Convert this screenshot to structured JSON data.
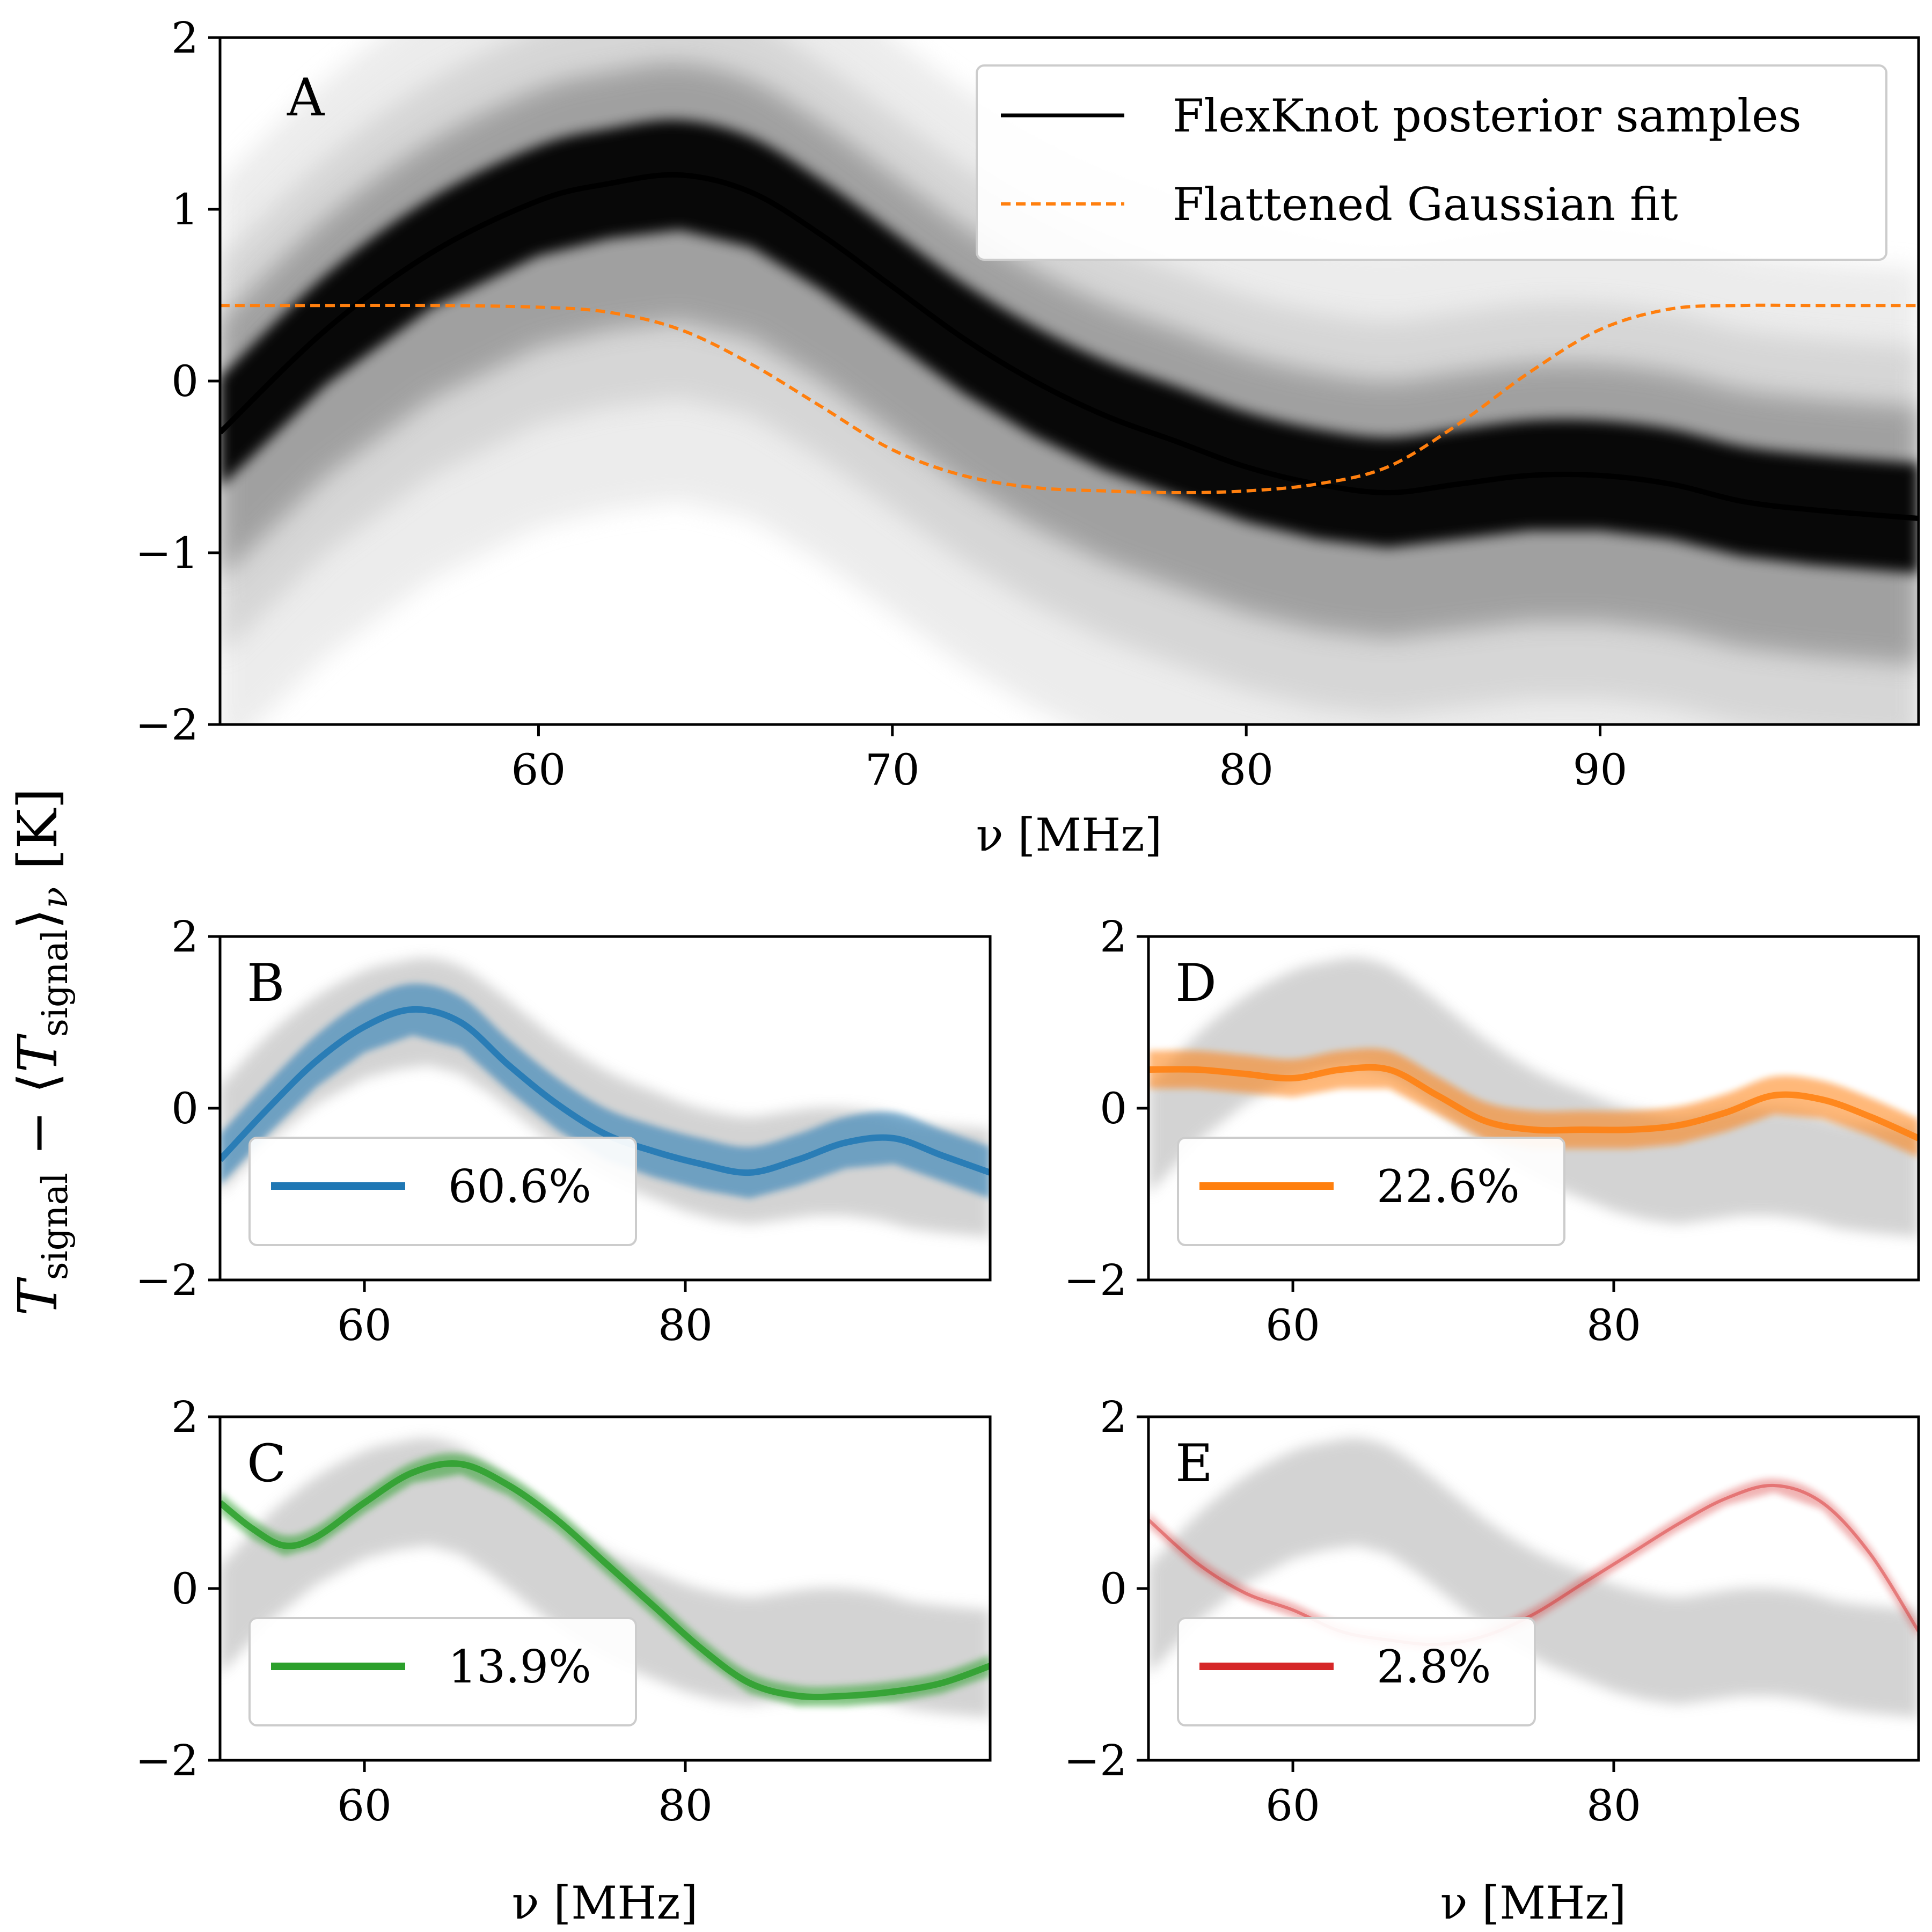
{
  "figure": {
    "ylabel": {
      "main": "T",
      "sub1": "signal",
      "minus": " − ⟨",
      "main2": "T",
      "sub2": "signal",
      "close": "⟩",
      "sub3": "ν",
      "unit": " [K]"
    }
  },
  "chart_data": [
    {
      "panel": "A",
      "type": "line",
      "xlabel": "ν [MHz]",
      "xlim": [
        51,
        99
      ],
      "ylim": [
        -2,
        2
      ],
      "xticks": [
        60,
        70,
        80,
        90
      ],
      "yticks": [
        2,
        1,
        0,
        -1,
        -2
      ],
      "ytick_labels": [
        "2",
        "1",
        "0",
        "−1",
        "−2"
      ],
      "grid": false,
      "legend_position": "top-right",
      "legend": [
        "FlexKnot posterior samples",
        "Flattened Gaussian fit"
      ],
      "colors": {
        "samples": "#000000",
        "fit": "#ff7f0e"
      },
      "series": [
        {
          "name": "FlexKnot posterior samples",
          "x": [
            51,
            54,
            57,
            60,
            62,
            64,
            66,
            68,
            70,
            72,
            74,
            76,
            78,
            80,
            82,
            84,
            86,
            88,
            90,
            92,
            94,
            96,
            99
          ],
          "values": [
            -0.3,
            0.3,
            0.75,
            1.05,
            1.15,
            1.2,
            1.1,
            0.85,
            0.55,
            0.25,
            0.0,
            -0.2,
            -0.35,
            -0.5,
            -0.6,
            -0.65,
            -0.6,
            -0.55,
            -0.55,
            -0.6,
            -0.7,
            -0.75,
            -0.8
          ]
        },
        {
          "name": "Flattened Gaussian fit",
          "x": [
            51,
            54,
            57,
            60,
            62,
            64,
            66,
            68,
            70,
            72,
            74,
            76,
            78,
            80,
            82,
            84,
            86,
            88,
            90,
            92,
            94,
            96,
            99
          ],
          "values": [
            0.44,
            0.44,
            0.44,
            0.43,
            0.4,
            0.3,
            0.1,
            -0.15,
            -0.4,
            -0.55,
            -0.62,
            -0.64,
            -0.65,
            -0.64,
            -0.6,
            -0.5,
            -0.25,
            0.05,
            0.3,
            0.42,
            0.44,
            0.44,
            0.44
          ]
        }
      ]
    },
    {
      "panel": "B",
      "type": "line",
      "xlim": [
        51,
        99
      ],
      "ylim": [
        -2,
        2
      ],
      "xticks": [
        60,
        80
      ],
      "yticks": [
        2,
        0,
        -2
      ],
      "ytick_labels": [
        "2",
        "0",
        "−2"
      ],
      "legend_position": "bottom-left",
      "legend": [
        "60.6%"
      ],
      "colors": {
        "cluster": "#1f77b4",
        "background": "#cccccc"
      },
      "series": [
        {
          "name": "60.6%",
          "x": [
            51,
            54,
            57,
            60,
            63,
            66,
            69,
            72,
            75,
            78,
            81,
            84,
            87,
            90,
            93,
            96,
            99
          ],
          "values": [
            -0.6,
            0.0,
            0.55,
            0.95,
            1.15,
            1.0,
            0.5,
            0.05,
            -0.3,
            -0.5,
            -0.65,
            -0.75,
            -0.6,
            -0.4,
            -0.35,
            -0.55,
            -0.75
          ]
        }
      ]
    },
    {
      "panel": "C",
      "type": "line",
      "xlim": [
        51,
        99
      ],
      "ylim": [
        -2,
        2
      ],
      "xticks": [
        60,
        80
      ],
      "yticks": [
        2,
        0,
        -2
      ],
      "ytick_labels": [
        "2",
        "0",
        "−2"
      ],
      "xlabel": "ν [MHz]",
      "legend_position": "bottom-left",
      "legend": [
        "13.9%"
      ],
      "colors": {
        "cluster": "#2ca02c",
        "background": "#cccccc"
      },
      "series": [
        {
          "name": "13.9%",
          "x": [
            51,
            53,
            55,
            57,
            60,
            63,
            66,
            69,
            72,
            75,
            78,
            81,
            84,
            87,
            90,
            93,
            96,
            99
          ],
          "values": [
            1.0,
            0.7,
            0.5,
            0.6,
            1.0,
            1.35,
            1.45,
            1.2,
            0.8,
            0.3,
            -0.2,
            -0.7,
            -1.1,
            -1.25,
            -1.25,
            -1.2,
            -1.1,
            -0.9
          ]
        }
      ]
    },
    {
      "panel": "D",
      "type": "line",
      "xlim": [
        51,
        99
      ],
      "ylim": [
        -2,
        2
      ],
      "xticks": [
        60,
        80
      ],
      "yticks": [
        2,
        0,
        -2
      ],
      "ytick_labels": [
        "2",
        "0",
        "−2"
      ],
      "legend_position": "bottom-left",
      "legend": [
        "22.6%"
      ],
      "colors": {
        "cluster": "#ff7f0e",
        "background": "#cccccc"
      },
      "series": [
        {
          "name": "22.6%",
          "x": [
            51,
            54,
            57,
            60,
            63,
            66,
            69,
            72,
            75,
            78,
            81,
            84,
            87,
            90,
            93,
            96,
            99
          ],
          "values": [
            0.45,
            0.45,
            0.4,
            0.35,
            0.45,
            0.45,
            0.15,
            -0.15,
            -0.25,
            -0.25,
            -0.25,
            -0.2,
            -0.05,
            0.15,
            0.1,
            -0.1,
            -0.35
          ]
        }
      ]
    },
    {
      "panel": "E",
      "type": "line",
      "xlim": [
        51,
        99
      ],
      "ylim": [
        -2,
        2
      ],
      "xticks": [
        60,
        80
      ],
      "yticks": [
        2,
        0,
        -2
      ],
      "ytick_labels": [
        "2",
        "0",
        "−2"
      ],
      "xlabel": "ν [MHz]",
      "legend_position": "bottom-left",
      "legend": [
        "2.8%"
      ],
      "colors": {
        "cluster": "#d62728",
        "background": "#cccccc"
      },
      "series": [
        {
          "name": "2.8%",
          "x": [
            51,
            54,
            57,
            60,
            63,
            66,
            69,
            72,
            75,
            78,
            81,
            84,
            87,
            90,
            93,
            96,
            99
          ],
          "values": [
            0.8,
            0.3,
            -0.05,
            -0.25,
            -0.5,
            -0.6,
            -0.65,
            -0.55,
            -0.3,
            0.05,
            0.4,
            0.75,
            1.05,
            1.2,
            1.0,
            0.4,
            -0.5
          ]
        }
      ]
    }
  ]
}
